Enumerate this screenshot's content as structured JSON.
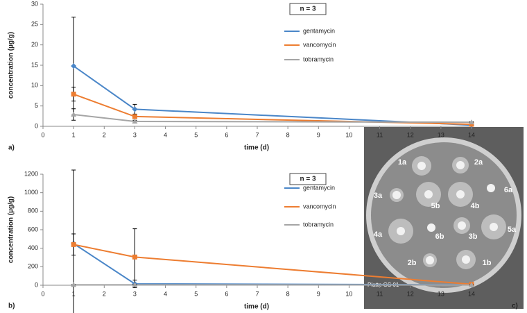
{
  "chart_data": [
    {
      "type": "line",
      "x": [
        1,
        3,
        14
      ],
      "xlim": [
        0,
        14
      ],
      "xticks": [
        0,
        1,
        2,
        3,
        4,
        5,
        6,
        7,
        8,
        9,
        10,
        11,
        12,
        13,
        14
      ],
      "ylim": [
        0,
        30
      ],
      "yticks": [
        0,
        5,
        10,
        15,
        20,
        25,
        30
      ],
      "y_label": "concentration (µg/g)",
      "x_label": "time (d)",
      "annotation": "n = 3",
      "panel_label": "a)",
      "legend": "right",
      "series": [
        {
          "name": "gentamycin",
          "color": "#4a86c8",
          "marker": "diamond",
          "values": [
            14.8,
            4.2,
            0.3
          ],
          "errors": [
            12,
            1.2,
            0.2
          ]
        },
        {
          "name": "vancomycin",
          "color": "#ed7d31",
          "marker": "square",
          "values": [
            7.9,
            2.4,
            0.5
          ],
          "errors": [
            1.7,
            0.3,
            0.1
          ]
        },
        {
          "name": "tobramycin",
          "color": "#a5a5a5",
          "marker": "triangle",
          "values": [
            2.9,
            1.2,
            1.0
          ],
          "errors": [
            1.4,
            0.3,
            0.1
          ]
        }
      ]
    },
    {
      "type": "line",
      "x": [
        1,
        3,
        14
      ],
      "xlim": [
        0,
        14
      ],
      "xticks": [
        0,
        1,
        2,
        3,
        4,
        5,
        6,
        7,
        8,
        9,
        10,
        11,
        12,
        13,
        14
      ],
      "ylim": [
        0,
        1200
      ],
      "yticks": [
        0,
        200,
        400,
        600,
        800,
        1000,
        1200
      ],
      "y_label": "concentration (µg/g)",
      "x_label": "time (d)",
      "annotation": "n = 3",
      "panel_label": "b)",
      "legend": "right",
      "series": [
        {
          "name": "gentamycin",
          "color": "#4a86c8",
          "marker": "diamond",
          "values": [
            450,
            15,
            5
          ],
          "errors": [
            795,
            40,
            2
          ]
        },
        {
          "name": "vancomycin",
          "color": "#ed7d31",
          "marker": "square",
          "values": [
            440,
            305,
            10
          ],
          "errors": [
            115,
            305,
            5
          ]
        },
        {
          "name": "tobramycin",
          "color": "#a5a5a5",
          "marker": "triangle",
          "values": [
            5,
            5,
            3
          ],
          "errors": [
            2,
            2,
            1
          ]
        }
      ]
    }
  ],
  "plate": {
    "panel_label": "c)",
    "caption": "Platte GS 01",
    "labels": [
      "1a",
      "2a",
      "3a",
      "5b",
      "4b",
      "6a",
      "4a",
      "6b",
      "3b",
      "5a",
      "2b",
      "1b"
    ]
  }
}
